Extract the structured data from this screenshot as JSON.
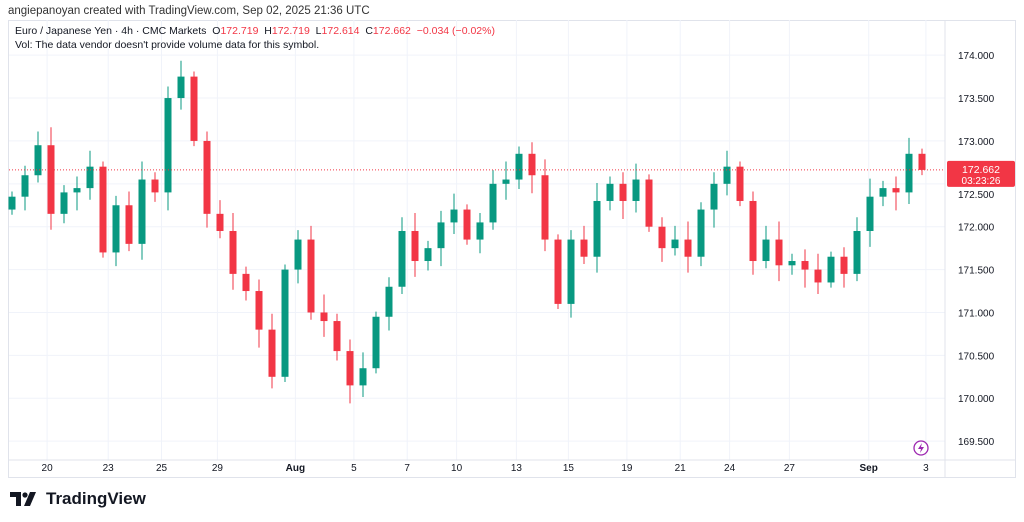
{
  "credit": "angiepanoyan created with TradingView.com, Sep 02, 2025 21:36 UTC",
  "legend": {
    "symbol": "Euro / Japanese Yen · 4h · CMC Markets",
    "o_label": "O",
    "o": "172.719",
    "h_label": "H",
    "h": "172.719",
    "l_label": "L",
    "l": "172.614",
    "c_label": "C",
    "c": "172.662",
    "change": "−0.034 (−0.02%)",
    "vol": "Vol: The data vendor doesn't provide volume data for this symbol."
  },
  "price_tag": {
    "price": "172.662",
    "countdown": "03:23:26"
  },
  "logo": "TradingView",
  "colors": {
    "up": "#089981",
    "down": "#f23645",
    "grid": "#f0f3fa"
  },
  "chart_data": {
    "type": "candlestick",
    "ylim": [
      169.28,
      174.41
    ],
    "y_ticks": [
      "174.000",
      "173.500",
      "173.000",
      "172.500",
      "172.000",
      "171.500",
      "171.000",
      "170.500",
      "170.000",
      "169.500"
    ],
    "x_ticks": [
      {
        "label": "20",
        "at": 2.7
      },
      {
        "label": "23",
        "at": 7.4
      },
      {
        "label": "25",
        "at": 11.5
      },
      {
        "label": "29",
        "at": 15.8
      },
      {
        "label": "Aug",
        "at": 21.8,
        "bold": true
      },
      {
        "label": "5",
        "at": 26.3
      },
      {
        "label": "7",
        "at": 30.4
      },
      {
        "label": "10",
        "at": 34.2
      },
      {
        "label": "13",
        "at": 38.8
      },
      {
        "label": "15",
        "at": 42.8
      },
      {
        "label": "19",
        "at": 47.3
      },
      {
        "label": "21",
        "at": 51.4
      },
      {
        "label": "24",
        "at": 55.2
      },
      {
        "label": "27",
        "at": 59.8
      },
      {
        "label": "Sep",
        "at": 65.9,
        "bold": true
      },
      {
        "label": "3",
        "at": 70.3
      }
    ],
    "first_open": 172.2,
    "closes": [
      172.35,
      172.6,
      172.95,
      172.15,
      172.4,
      172.45,
      172.7,
      171.7,
      172.25,
      171.8,
      172.55,
      172.4,
      173.5,
      173.75,
      173.0,
      172.15,
      171.95,
      171.45,
      171.25,
      170.8,
      170.25,
      171.5,
      171.85,
      171.0,
      170.9,
      170.55,
      170.15,
      170.35,
      170.95,
      171.3,
      171.95,
      171.6,
      171.75,
      172.05,
      172.2,
      171.85,
      172.05,
      172.5,
      172.55,
      172.85,
      172.6,
      171.85,
      171.1,
      171.85,
      171.65,
      172.3,
      172.5,
      172.3,
      172.55,
      172.0,
      171.75,
      171.85,
      171.65,
      172.2,
      172.5,
      172.7,
      172.3,
      171.6,
      171.85,
      171.55,
      171.6,
      171.5,
      171.35,
      171.65,
      171.45,
      171.95,
      172.35,
      172.45,
      172.4,
      172.85,
      172.662
    ],
    "last_price": 172.662
  }
}
